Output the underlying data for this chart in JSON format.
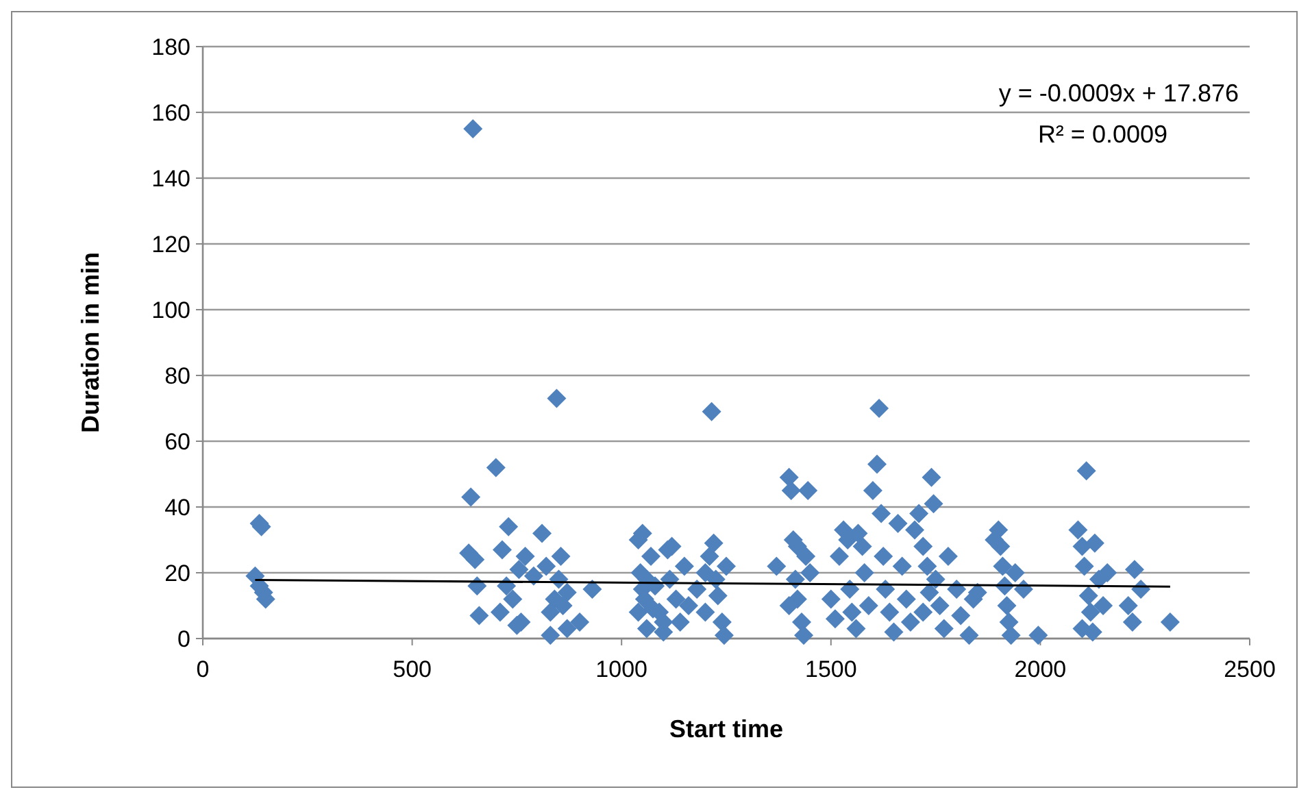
{
  "chart_data": {
    "type": "scatter",
    "xlabel": "Start time",
    "ylabel": "Duration in min",
    "xlim": [
      0,
      2500
    ],
    "xticks": [
      0,
      500,
      1000,
      1500,
      2000,
      2500
    ],
    "ylim": [
      0,
      180
    ],
    "yticks": [
      0,
      20,
      40,
      60,
      80,
      100,
      120,
      140,
      160,
      180
    ],
    "grid": "y",
    "marker": "diamond",
    "annotations": [
      "y = -0.0009x + 17.876",
      "R² = 0.0009"
    ],
    "series": [
      {
        "color": "#4f81bd",
        "x": [
          125,
          135,
          145,
          150,
          135,
          140,
          645,
          640,
          635,
          650,
          655,
          660,
          700,
          710,
          715,
          730,
          725,
          740,
          755,
          760,
          770,
          750,
          790,
          810,
          820,
          830,
          845,
          850,
          855,
          860,
          840,
          830,
          870,
          900,
          930,
          870,
          1040,
          1050,
          1045,
          1050,
          1040,
          1060,
          1055,
          1070,
          1080,
          1090,
          1100,
          1110,
          1120,
          1115,
          1100,
          1130,
          1150,
          1160,
          1180,
          1200,
          1210,
          1220,
          1215,
          1225,
          1230,
          1240,
          1245,
          1250,
          1060,
          1075,
          1140,
          1200,
          1370,
          1400,
          1405,
          1410,
          1420,
          1415,
          1420,
          1430,
          1435,
          1445,
          1440,
          1400,
          1450,
          1520,
          1530,
          1540,
          1545,
          1550,
          1560,
          1565,
          1575,
          1580,
          1600,
          1610,
          1615,
          1620,
          1625,
          1630,
          1640,
          1650,
          1660,
          1670,
          1680,
          1690,
          1500,
          1510,
          1590,
          1700,
          1710,
          1720,
          1730,
          1740,
          1745,
          1750,
          1760,
          1770,
          1780,
          1720,
          1735,
          1800,
          1810,
          1830,
          1840,
          1850,
          1900,
          1905,
          1910,
          1915,
          1920,
          1925,
          1930,
          1940,
          1890,
          1995,
          1960,
          2090,
          2100,
          2105,
          2110,
          2115,
          2120,
          2125,
          2130,
          2140,
          2150,
          2160,
          2210,
          2220,
          2225,
          2240,
          2310,
          2100
        ],
        "values": [
          19,
          16,
          14,
          12,
          35,
          34,
          155,
          43,
          26,
          24,
          16,
          7,
          52,
          8,
          27,
          34,
          16,
          12,
          21,
          5,
          25,
          4,
          19,
          32,
          22,
          1,
          73,
          18,
          25,
          10,
          12,
          8,
          14,
          5,
          15,
          3,
          30,
          32,
          20,
          15,
          8,
          3,
          12,
          25,
          16,
          8,
          5,
          27,
          28,
          18,
          2,
          12,
          22,
          10,
          15,
          8,
          25,
          29,
          69,
          18,
          13,
          5,
          1,
          22,
          18,
          9,
          5,
          20,
          22,
          49,
          45,
          30,
          28,
          18,
          12,
          5,
          1,
          45,
          25,
          10,
          20,
          25,
          33,
          30,
          15,
          8,
          3,
          32,
          28,
          20,
          45,
          53,
          70,
          38,
          25,
          15,
          8,
          2,
          35,
          22,
          12,
          5,
          12,
          6,
          10,
          33,
          38,
          28,
          22,
          49,
          41,
          18,
          10,
          3,
          25,
          8,
          14,
          15,
          7,
          1,
          12,
          14,
          33,
          28,
          22,
          16,
          10,
          5,
          1,
          20,
          30,
          1,
          15,
          33,
          28,
          22,
          51,
          13,
          8,
          2,
          29,
          18,
          10,
          20,
          10,
          5,
          21,
          15,
          5,
          3
        ]
      },
      {
        "type": "line",
        "marker": "none",
        "color": "#000000",
        "x": [
          125,
          2310
        ],
        "values": [
          17.8,
          15.8
        ]
      }
    ]
  }
}
